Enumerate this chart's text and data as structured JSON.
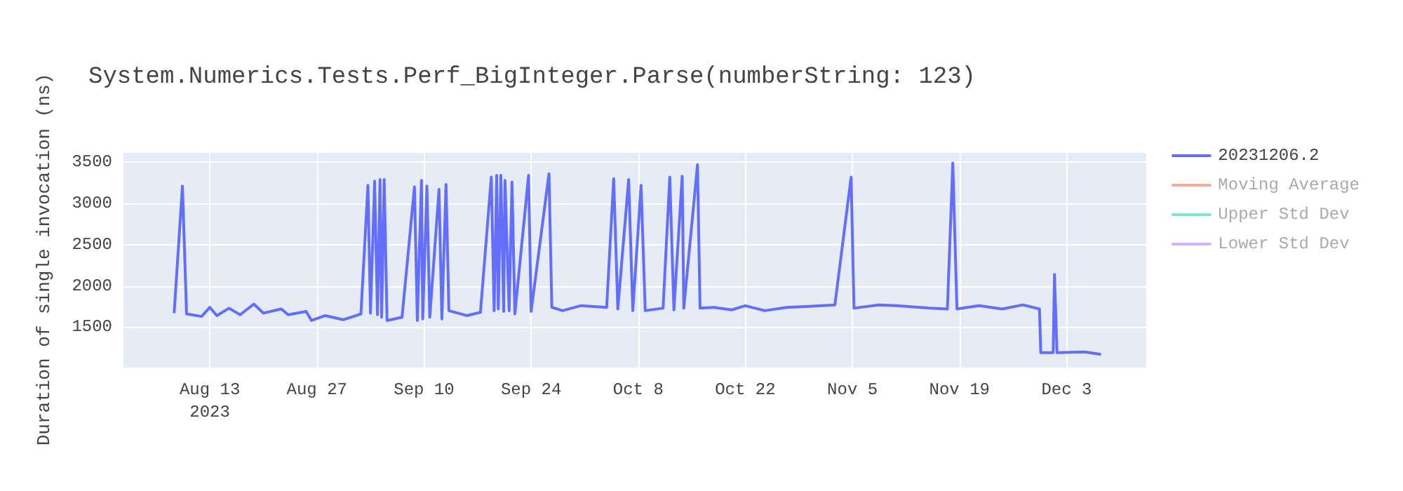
{
  "chart_data": {
    "type": "line",
    "title": "System.Numerics.Tests.Perf_BigInteger.Parse(numberString: 123)",
    "ylabel": "Duration of single invocation (ns)",
    "x": [
      "2023-08-08T08:00",
      "2023-08-09T10:00",
      "2023-08-09T23:00",
      "2023-08-11T22:00",
      "2023-08-13T00:00",
      "2023-08-13T22:00",
      "2023-08-15T12:00",
      "2023-08-16T23:00",
      "2023-08-18T18:00",
      "2023-08-20T00:00",
      "2023-08-22T08:00",
      "2023-08-23T06:00",
      "2023-08-25T14:00",
      "2023-08-26T07:00",
      "2023-08-28T02:00",
      "2023-08-30T10:00",
      "2023-09-01T18:00",
      "2023-09-02T16:00",
      "2023-09-03T00:00",
      "2023-09-03T13:00",
      "2023-09-03T22:00",
      "2023-09-04T06:00",
      "2023-09-04T11:00",
      "2023-09-04T19:00",
      "2023-09-05T04:00",
      "2023-09-07T03:00",
      "2023-09-08T18:00",
      "2023-09-09T03:00",
      "2023-09-09T16:00",
      "2023-09-09T20:00",
      "2023-09-10T09:00",
      "2023-09-10T18:00",
      "2023-09-11T23:00",
      "2023-09-12T08:00",
      "2023-09-12T21:00",
      "2023-09-13T06:00",
      "2023-09-15T14:00",
      "2023-09-17T09:00",
      "2023-09-18T19:00",
      "2023-09-19T04:00",
      "2023-09-19T12:00",
      "2023-09-19T17:00",
      "2023-09-20T01:00",
      "2023-09-20T10:00",
      "2023-09-20T14:00",
      "2023-09-21T03:00",
      "2023-09-21T12:00",
      "2023-09-21T21:00",
      "2023-09-23T16:00",
      "2023-09-24T00:00",
      "2023-09-26T08:00",
      "2023-09-26T17:00",
      "2023-09-28T03:00",
      "2023-09-30T11:00",
      "2023-10-03T21:00",
      "2023-10-04T19:00",
      "2023-10-05T08:00",
      "2023-10-06T18:00",
      "2023-10-07T07:00",
      "2023-10-08T09:00",
      "2023-10-08T22:00",
      "2023-10-11T06:00",
      "2023-10-12T03:00",
      "2023-10-12T16:00",
      "2023-10-13T18:00",
      "2023-10-13T23:00",
      "2023-10-15T18:00",
      "2023-10-16T02:00",
      "2023-10-17T21:00",
      "2023-10-20T05:00",
      "2023-10-22T00:00",
      "2023-10-24T13:00",
      "2023-10-27T10:00",
      "2023-10-29T22:00",
      "2023-11-02T17:00",
      "2023-11-04T20:00",
      "2023-11-05T05:00",
      "2023-11-08T10:00",
      "2023-11-10T18:00",
      "2023-11-15T02:00",
      "2023-11-17T10:00",
      "2023-11-18T03:00",
      "2023-11-18T16:00",
      "2023-11-21T13:00",
      "2023-11-24T14:00",
      "2023-11-27T07:00",
      "2023-11-29T11:00",
      "2023-11-29T15:00",
      "2023-12-01T06:00",
      "2023-12-01T10:00",
      "2023-12-01T18:00",
      "2023-12-05T09:00",
      "2023-12-07T12:00"
    ],
    "series": [
      {
        "name": "20231206.2",
        "color": "#636efa",
        "values": [
          1670,
          3210,
          1660,
          1630,
          1740,
          1640,
          1730,
          1650,
          1780,
          1670,
          1720,
          1650,
          1690,
          1580,
          1640,
          1590,
          1660,
          3220,
          1670,
          3270,
          1650,
          3290,
          1620,
          3290,
          1580,
          1620,
          3200,
          1580,
          3280,
          1600,
          3210,
          1620,
          3170,
          1600,
          3230,
          1700,
          1640,
          1680,
          3320,
          1700,
          3340,
          1720,
          3340,
          1690,
          3280,
          1700,
          3260,
          1660,
          3340,
          1690,
          3360,
          1740,
          1700,
          1760,
          1740,
          3300,
          1720,
          3290,
          1700,
          3220,
          1700,
          1730,
          3320,
          1710,
          3330,
          1730,
          3470,
          1730,
          1740,
          1710,
          1760,
          1700,
          1740,
          1750,
          1770,
          3320,
          1730,
          1770,
          1760,
          1730,
          1720,
          3490,
          1720,
          1760,
          1720,
          1770,
          1720,
          1190,
          1190,
          2140,
          1190,
          1200,
          1170
        ]
      },
      {
        "name": "Moving Average",
        "color": "#f5aa9d",
        "values": [
          null,
          null,
          null,
          null,
          null,
          null,
          null,
          null,
          null,
          null,
          null,
          null,
          null,
          null,
          null,
          null,
          null,
          null,
          null,
          null,
          null,
          null,
          null,
          null,
          null,
          null,
          null,
          null,
          null,
          null,
          null,
          null,
          null,
          null,
          null,
          null,
          null,
          null,
          null,
          null,
          null,
          null,
          null,
          null,
          null,
          null,
          null,
          null,
          null,
          null,
          null,
          null,
          null,
          null,
          null,
          null,
          null,
          null,
          null,
          null,
          null,
          null,
          null,
          null,
          null,
          null,
          null,
          null,
          null,
          null,
          null,
          null,
          null,
          null,
          null,
          null,
          null,
          null,
          null,
          null,
          null,
          null,
          null,
          null,
          null,
          null,
          null,
          null,
          null,
          null,
          null,
          null,
          null
        ]
      },
      {
        "name": "Upper Std Dev",
        "color": "#80e6cb",
        "values": [
          null,
          null,
          null,
          null,
          null,
          null,
          null,
          null,
          null,
          null,
          null,
          null,
          null,
          null,
          null,
          null,
          null,
          null,
          null,
          null,
          null,
          null,
          null,
          null,
          null,
          null,
          null,
          null,
          null,
          null,
          null,
          null,
          null,
          null,
          null,
          null,
          null,
          null,
          null,
          null,
          null,
          null,
          null,
          null,
          null,
          null,
          null,
          null,
          null,
          null,
          null,
          null,
          null,
          null,
          null,
          null,
          null,
          null,
          null,
          null,
          null,
          null,
          null,
          null,
          null,
          null,
          null,
          null,
          null,
          null,
          null,
          null,
          null,
          null,
          null,
          null,
          null,
          null,
          null,
          null,
          null,
          null,
          null,
          null,
          null,
          null,
          null,
          null,
          null,
          null,
          null,
          null,
          null
        ]
      },
      {
        "name": "Lower Std Dev",
        "color": "#d5b1fd",
        "values": [
          null,
          null,
          null,
          null,
          null,
          null,
          null,
          null,
          null,
          null,
          null,
          null,
          null,
          null,
          null,
          null,
          null,
          null,
          null,
          null,
          null,
          null,
          null,
          null,
          null,
          null,
          null,
          null,
          null,
          null,
          null,
          null,
          null,
          null,
          null,
          null,
          null,
          null,
          null,
          null,
          null,
          null,
          null,
          null,
          null,
          null,
          null,
          null,
          null,
          null,
          null,
          null,
          null,
          null,
          null,
          null,
          null,
          null,
          null,
          null,
          null,
          null,
          null,
          null,
          null,
          null,
          null,
          null,
          null,
          null,
          null,
          null,
          null,
          null,
          null,
          null,
          null,
          null,
          null,
          null,
          null,
          null,
          null,
          null,
          null,
          null,
          null,
          null,
          null,
          null,
          null,
          null,
          null
        ]
      }
    ],
    "xlim": [
      "2023-08-01T17:00",
      "2023-12-13T10:00"
    ],
    "xticks": [
      {
        "value": "2023-08-13",
        "label": "Aug 13\n2023"
      },
      {
        "value": "2023-08-27",
        "label": "Aug 27"
      },
      {
        "value": "2023-09-10",
        "label": "Sep 10"
      },
      {
        "value": "2023-09-24",
        "label": "Sep 24"
      },
      {
        "value": "2023-10-08",
        "label": "Oct 8"
      },
      {
        "value": "2023-10-22",
        "label": "Oct 22"
      },
      {
        "value": "2023-11-05",
        "label": "Nov 5"
      },
      {
        "value": "2023-11-19",
        "label": "Nov 19"
      },
      {
        "value": "2023-12-03",
        "label": "Dec 3"
      }
    ],
    "ylim": [
      1010,
      3630
    ],
    "yticks": [
      1500,
      2000,
      2500,
      3000,
      3500
    ],
    "grid": true,
    "legend": "top right",
    "marker": "none",
    "line_style": "solid"
  }
}
